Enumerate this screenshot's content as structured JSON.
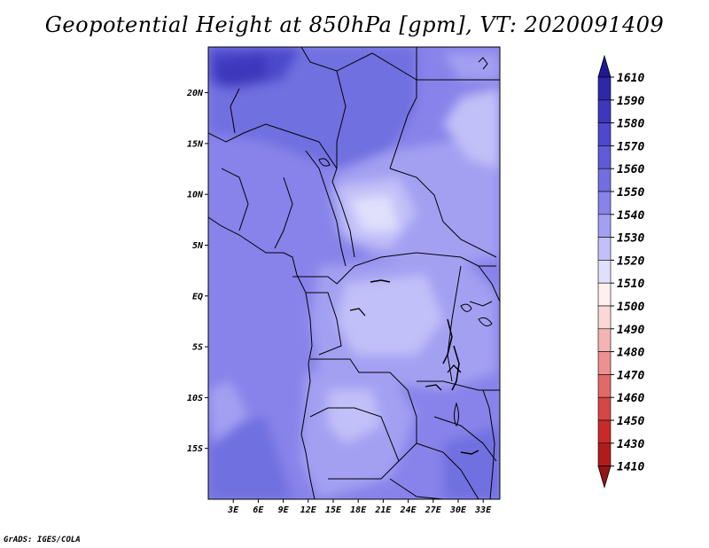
{
  "title": "Geopotential Height at 850hPa [gpm], VT: 2020091409",
  "credit": "GrADS: IGES/COLA",
  "map": {
    "lat_ticks": [
      "20N",
      "15N",
      "10N",
      "5N",
      "EQ",
      "5S",
      "10S",
      "15S"
    ],
    "lon_ticks": [
      "3E",
      "6E",
      "9E",
      "12E",
      "15E",
      "18E",
      "21E",
      "24E",
      "27E",
      "30E",
      "33E"
    ],
    "lon_range": [
      0,
      35
    ],
    "lat_range": [
      -20,
      24.5
    ]
  },
  "colorbar": {
    "labels": [
      "1610",
      "1590",
      "1580",
      "1570",
      "1560",
      "1550",
      "1540",
      "1530",
      "1520",
      "1510",
      "1500",
      "1490",
      "1480",
      "1470",
      "1460",
      "1450",
      "1430",
      "1410"
    ],
    "colors": [
      "#201895",
      "#2e28a8",
      "#3d37bb",
      "#4d48cc",
      "#5f5cd6",
      "#716fe0",
      "#8783ea",
      "#a3a0f2",
      "#c2c0f8",
      "#e0e0fc",
      "#fff0f0",
      "#fbd8d8",
      "#f4b4b4",
      "#ec9090",
      "#e06a6a",
      "#d64646",
      "#c82a2a",
      "#b01c1c",
      "#961414"
    ]
  }
}
